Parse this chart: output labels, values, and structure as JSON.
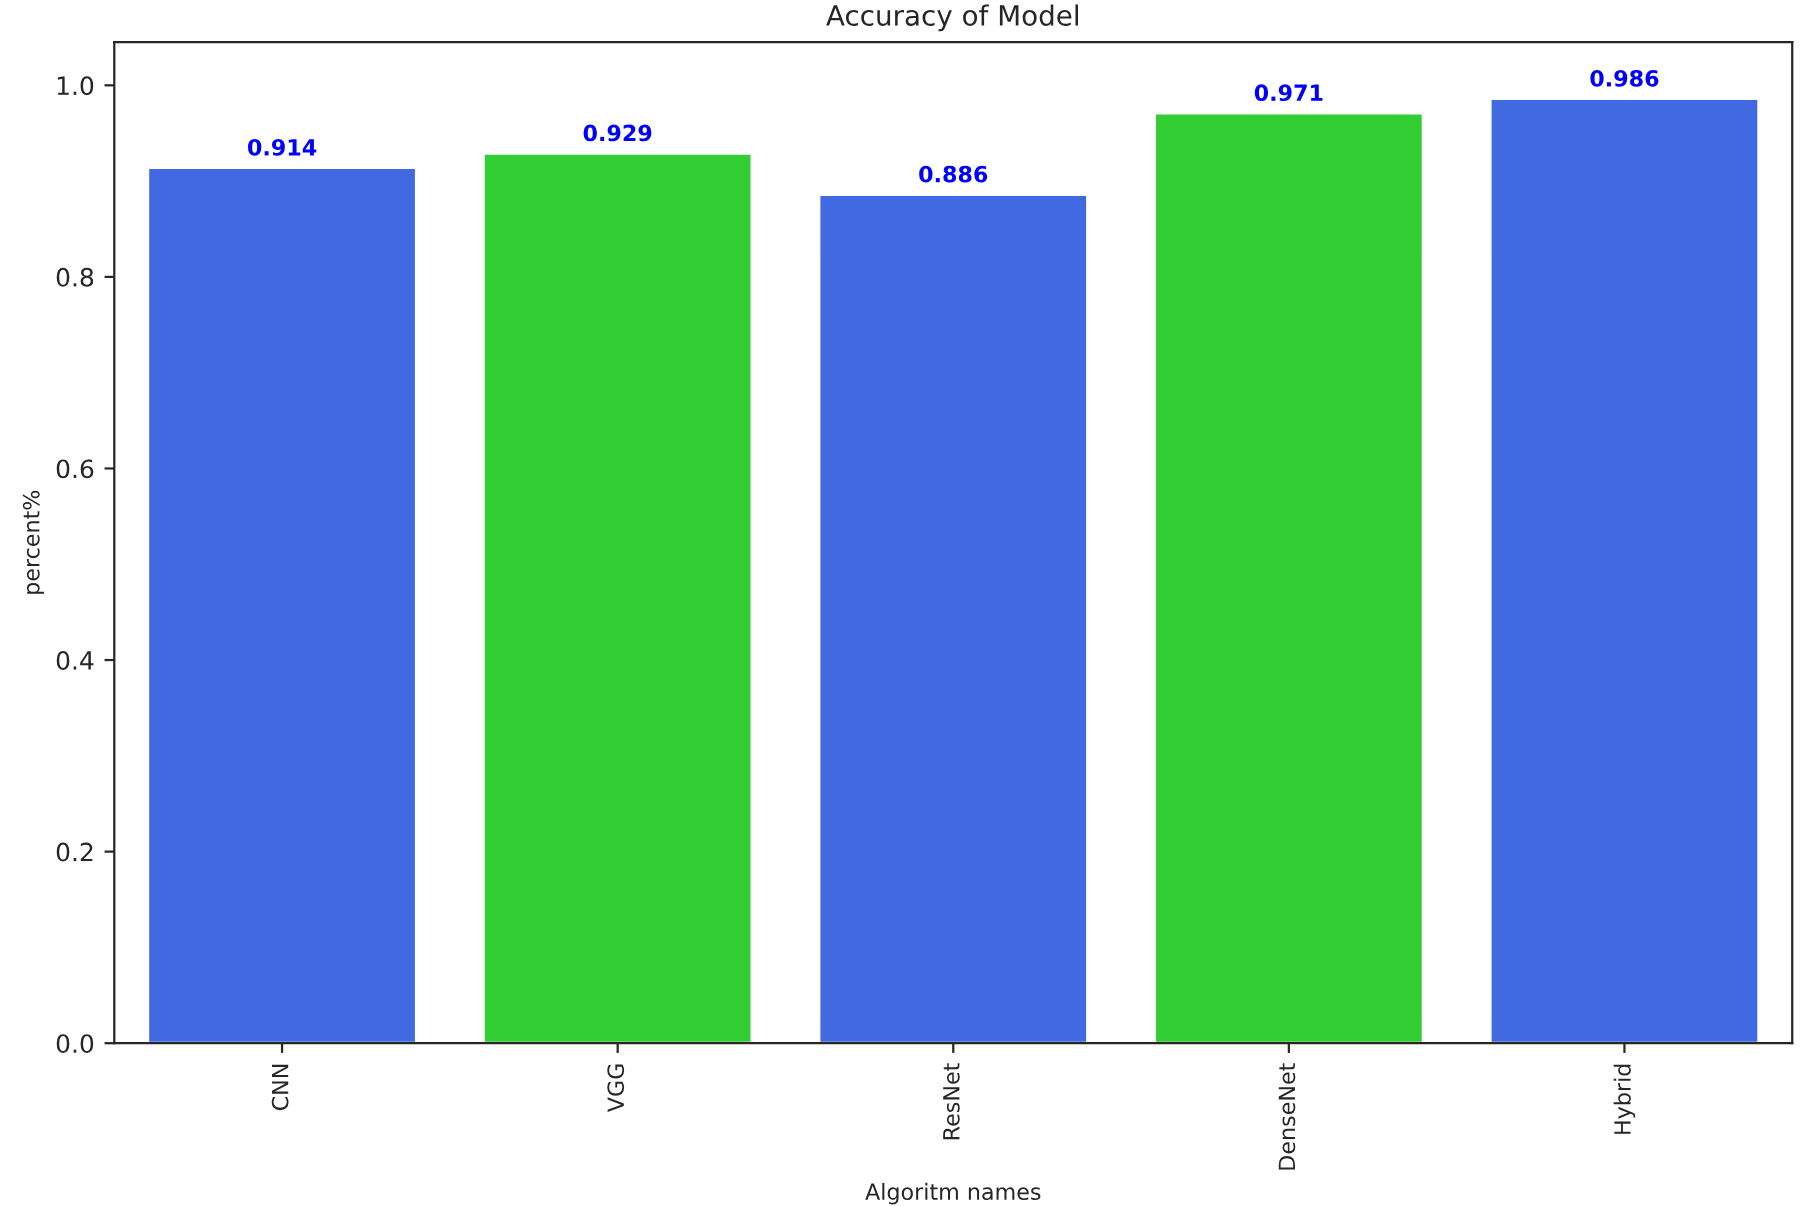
{
  "chart_data": {
    "type": "bar",
    "title": "Accuracy of Model",
    "xlabel": "Algoritm names",
    "ylabel": "percent%",
    "categories": [
      "CNN",
      "VGG",
      "ResNet",
      "DenseNet",
      "Hybrid"
    ],
    "values": [
      0.914,
      0.929,
      0.886,
      0.971,
      0.986
    ],
    "colors": [
      "#4169e1",
      "#32cd32",
      "#4169e1",
      "#32cd32",
      "#4169e1"
    ],
    "data_labels": true,
    "ylim": [
      0,
      1.045
    ],
    "yticks": [
      {
        "value": 0,
        "label": "0.0"
      },
      0.2,
      0.4,
      0.6,
      0.8,
      {
        "value": 1,
        "label": "1.0"
      }
    ],
    "grid": false,
    "legend": false
  }
}
